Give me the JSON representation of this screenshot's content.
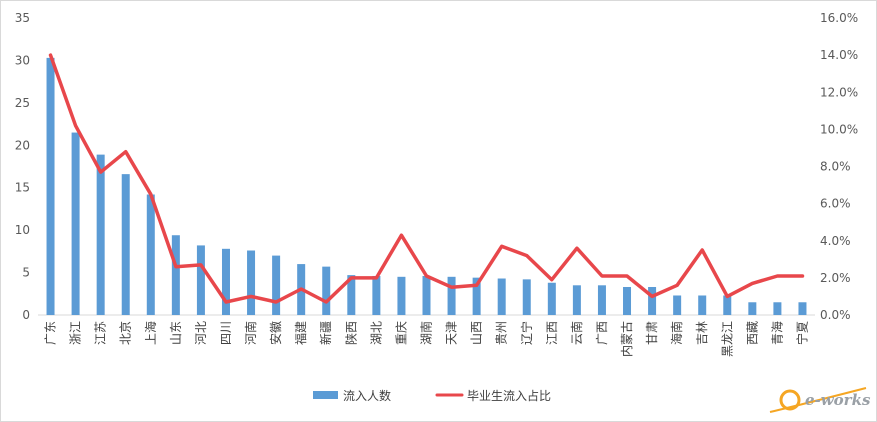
{
  "chart_data": {
    "type": "bar",
    "categories": [
      "广东",
      "浙江",
      "江苏",
      "北京",
      "上海",
      "山东",
      "河北",
      "四川",
      "河南",
      "安徽",
      "福建",
      "新疆",
      "陕西",
      "湖北",
      "重庆",
      "湖南",
      "天津",
      "山西",
      "贵州",
      "辽宁",
      "江西",
      "云南",
      "广西",
      "内蒙古",
      "甘肃",
      "海南",
      "吉林",
      "黑龙江",
      "西藏",
      "青海",
      "宁夏"
    ],
    "series": [
      {
        "name": "流入人数",
        "type": "bar",
        "axis": "left",
        "color": "#5b9bd5",
        "values": [
          30.3,
          21.5,
          18.9,
          16.6,
          14.2,
          9.4,
          8.2,
          7.8,
          7.6,
          7.0,
          6.0,
          5.7,
          4.7,
          4.6,
          4.5,
          4.6,
          4.5,
          4.4,
          4.3,
          4.2,
          3.8,
          3.5,
          3.5,
          3.3,
          3.3,
          2.3,
          2.3,
          2.3,
          1.5,
          1.5,
          1.5
        ]
      },
      {
        "name": "毕业生流入占比",
        "type": "line",
        "axis": "right",
        "color": "#e8474b",
        "values": [
          0.14,
          0.102,
          0.077,
          0.088,
          0.065,
          0.026,
          0.027,
          0.007,
          0.01,
          0.007,
          0.014,
          0.007,
          0.02,
          0.02,
          0.043,
          0.021,
          0.015,
          0.016,
          0.037,
          0.032,
          0.019,
          0.036,
          0.021,
          0.021,
          0.01,
          0.016,
          0.035,
          0.01,
          0.017,
          0.021,
          0.021
        ]
      }
    ],
    "y_left": {
      "ylim": [
        0,
        35
      ],
      "ticks": [
        "0",
        "5",
        "10",
        "15",
        "20",
        "25",
        "30",
        "35"
      ]
    },
    "y_right": {
      "ylim": [
        0,
        0.16
      ],
      "ticks": [
        "0.0%",
        "2.0%",
        "4.0%",
        "6.0%",
        "8.0%",
        "10.0%",
        "12.0%",
        "14.0%",
        "16.0%"
      ]
    },
    "legend": {
      "position": "bottom"
    },
    "grid": false
  },
  "logo": {
    "text": "e-works",
    "color": "#f5a623"
  }
}
